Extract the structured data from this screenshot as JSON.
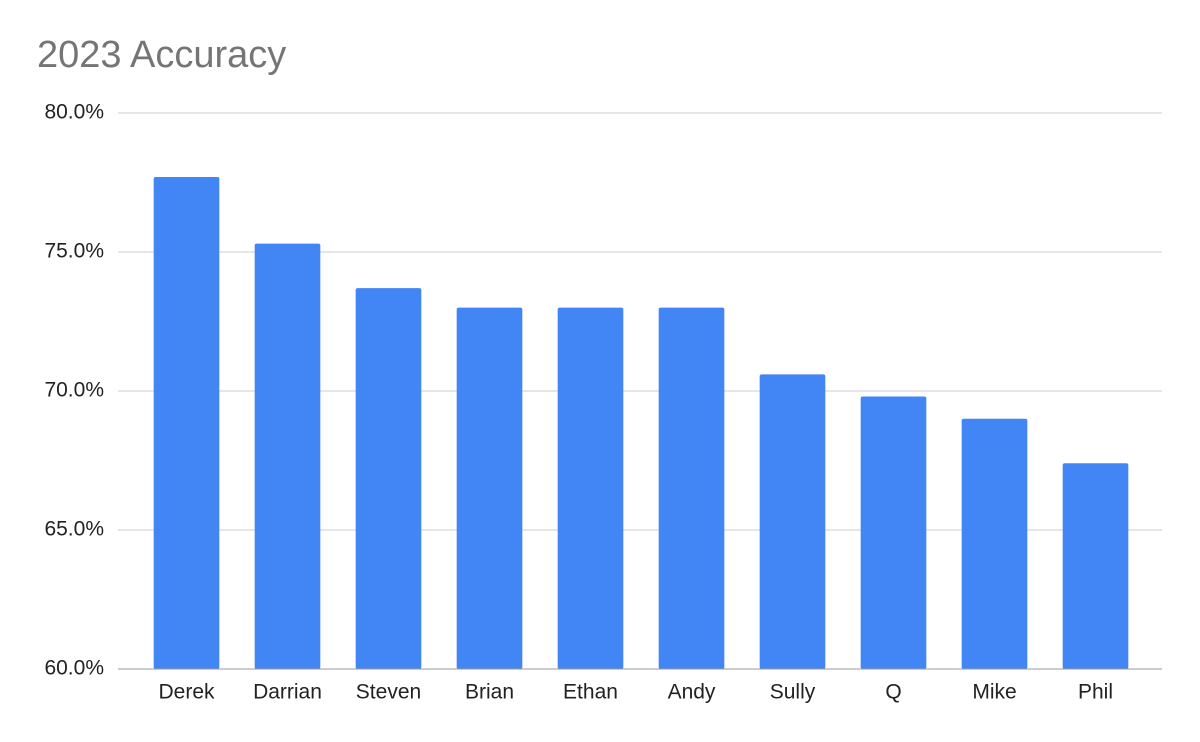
{
  "chart_data": {
    "type": "bar",
    "title": "2023 Accuracy",
    "categories": [
      "Derek",
      "Darrian",
      "Steven",
      "Brian",
      "Ethan",
      "Andy",
      "Sully",
      "Q",
      "Mike",
      "Phil"
    ],
    "values": [
      77.7,
      75.3,
      73.7,
      73.0,
      73.0,
      73.0,
      70.6,
      69.8,
      69.0,
      67.4
    ],
    "color": "#4285f4",
    "ylim": [
      60,
      80
    ],
    "yticks": [
      {
        "value": 60,
        "label": "60.0%"
      },
      {
        "value": 65,
        "label": "65.0%"
      },
      {
        "value": 70,
        "label": "70.0%"
      },
      {
        "value": 75,
        "label": "75.0%"
      },
      {
        "value": 80,
        "label": "80.0%"
      }
    ],
    "grid": true
  }
}
